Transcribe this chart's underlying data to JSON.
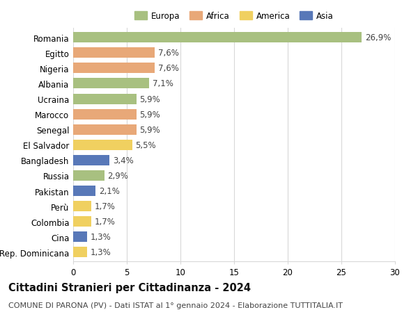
{
  "countries": [
    "Romania",
    "Egitto",
    "Nigeria",
    "Albania",
    "Ucraina",
    "Marocco",
    "Senegal",
    "El Salvador",
    "Bangladesh",
    "Russia",
    "Pakistan",
    "Perù",
    "Colombia",
    "Cina",
    "Rep. Dominicana"
  ],
  "values": [
    26.9,
    7.6,
    7.6,
    7.1,
    5.9,
    5.9,
    5.9,
    5.5,
    3.4,
    2.9,
    2.1,
    1.7,
    1.7,
    1.3,
    1.3
  ],
  "labels": [
    "26,9%",
    "7,6%",
    "7,6%",
    "7,1%",
    "5,9%",
    "5,9%",
    "5,9%",
    "5,5%",
    "3,4%",
    "2,9%",
    "2,1%",
    "1,7%",
    "1,7%",
    "1,3%",
    "1,3%"
  ],
  "continents": [
    "Europa",
    "Africa",
    "Africa",
    "Europa",
    "Europa",
    "Africa",
    "Africa",
    "America",
    "Asia",
    "Europa",
    "Asia",
    "America",
    "America",
    "Asia",
    "America"
  ],
  "continent_colors": {
    "Europa": "#a8c080",
    "Africa": "#e8a878",
    "America": "#f0d060",
    "Asia": "#5878b8"
  },
  "legend_order": [
    "Europa",
    "Africa",
    "America",
    "Asia"
  ],
  "title": "Cittadini Stranieri per Cittadinanza - 2024",
  "subtitle": "COMUNE DI PARONA (PV) - Dati ISTAT al 1° gennaio 2024 - Elaborazione TUTTITALIA.IT",
  "xlim": [
    0,
    30
  ],
  "xticks": [
    0,
    5,
    10,
    15,
    20,
    25,
    30
  ],
  "bar_height": 0.68,
  "background_color": "#ffffff",
  "grid_color": "#d8d8d8",
  "label_fontsize": 8.5,
  "tick_fontsize": 8.5,
  "title_fontsize": 10.5,
  "subtitle_fontsize": 8.0
}
